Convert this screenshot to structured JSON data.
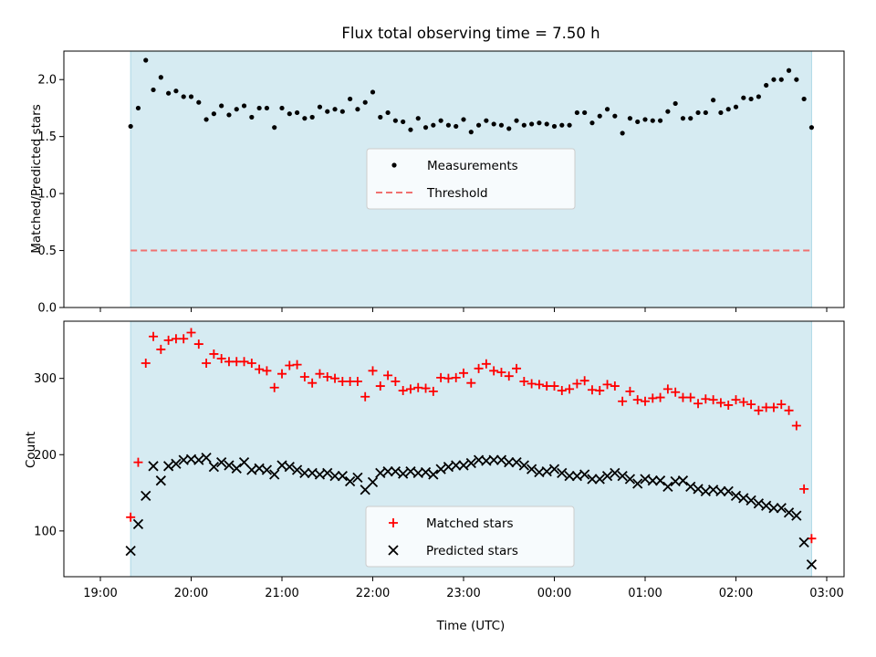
{
  "chart_data": [
    {
      "type": "scatter",
      "title": "Flux total observing time = 7.50 h",
      "xlabel": "",
      "ylabel": "Matched/Predicted stars",
      "ylim": [
        0.0,
        2.25
      ],
      "yticks": [
        "0.0",
        "0.5",
        "1.0",
        "1.5",
        "2.0"
      ],
      "shaded_span": [
        "19:20",
        "02:50"
      ],
      "legend_location": "center",
      "series": [
        {
          "name": "Measurements",
          "marker": "dot",
          "color": "#000000",
          "x": [
            "19:20",
            "19:25",
            "19:30",
            "19:35",
            "19:40",
            "19:45",
            "19:50",
            "19:55",
            "20:00",
            "20:05",
            "20:10",
            "20:15",
            "20:20",
            "20:25",
            "20:30",
            "20:35",
            "20:40",
            "20:45",
            "20:50",
            "20:55",
            "21:00",
            "21:05",
            "21:10",
            "21:15",
            "21:20",
            "21:25",
            "21:30",
            "21:35",
            "21:40",
            "21:45",
            "21:50",
            "21:55",
            "22:00",
            "22:05",
            "22:10",
            "22:15",
            "22:20",
            "22:25",
            "22:30",
            "22:35",
            "22:40",
            "22:45",
            "22:50",
            "22:55",
            "23:00",
            "23:05",
            "23:10",
            "23:15",
            "23:20",
            "23:25",
            "23:30",
            "23:35",
            "23:40",
            "23:45",
            "23:50",
            "23:55",
            "00:00",
            "00:05",
            "00:10",
            "00:15",
            "00:20",
            "00:25",
            "00:30",
            "00:35",
            "00:40",
            "00:45",
            "00:50",
            "00:55",
            "01:00",
            "01:05",
            "01:10",
            "01:15",
            "01:20",
            "01:25",
            "01:30",
            "01:35",
            "01:40",
            "01:45",
            "01:50",
            "01:55",
            "02:00",
            "02:05",
            "02:10",
            "02:15",
            "02:20",
            "02:25",
            "02:30",
            "02:35",
            "02:40",
            "02:45",
            "02:50"
          ],
          "y": [
            1.59,
            1.75,
            2.17,
            1.91,
            2.02,
            1.88,
            1.9,
            1.85,
            1.85,
            1.8,
            1.65,
            1.7,
            1.77,
            1.69,
            1.74,
            1.77,
            1.67,
            1.75,
            1.75,
            1.58,
            1.75,
            1.7,
            1.71,
            1.66,
            1.67,
            1.76,
            1.72,
            1.74,
            1.72,
            1.83,
            1.74,
            1.8,
            1.89,
            1.67,
            1.71,
            1.64,
            1.63,
            1.56,
            1.66,
            1.58,
            1.6,
            1.64,
            1.6,
            1.59,
            1.65,
            1.54,
            1.6,
            1.64,
            1.61,
            1.6,
            1.57,
            1.64,
            1.6,
            1.61,
            1.62,
            1.61,
            1.59,
            1.6,
            1.6,
            1.71,
            1.71,
            1.62,
            1.68,
            1.74,
            1.68,
            1.53,
            1.66,
            1.63,
            1.65,
            1.64,
            1.64,
            1.72,
            1.79,
            1.66,
            1.66,
            1.71,
            1.71,
            1.82,
            1.71,
            1.74,
            1.76,
            1.84,
            1.83,
            1.85,
            1.95,
            2.0,
            2.0,
            2.08,
            2.0,
            1.83,
            1.58
          ]
        },
        {
          "name": "Threshold",
          "marker": "dashed-line",
          "color": "#f07070",
          "x": [
            "19:20",
            "02:50"
          ],
          "y": [
            0.5,
            0.5
          ]
        }
      ]
    },
    {
      "type": "scatter",
      "title": "",
      "xlabel": "Time (UTC)",
      "ylabel": "Count",
      "ylim": [
        40,
        375
      ],
      "yticks": [
        "100",
        "200",
        "300"
      ],
      "xticks": [
        "19:00",
        "20:00",
        "21:00",
        "22:00",
        "23:00",
        "00:00",
        "01:00",
        "02:00",
        "03:00"
      ],
      "shaded_span": [
        "19:20",
        "02:50"
      ],
      "legend_location": "lower center",
      "series": [
        {
          "name": "Matched stars",
          "marker": "plus",
          "color": "#ff0000",
          "x": [
            "19:20",
            "19:25",
            "19:30",
            "19:35",
            "19:40",
            "19:45",
            "19:50",
            "19:55",
            "20:00",
            "20:05",
            "20:10",
            "20:15",
            "20:20",
            "20:25",
            "20:30",
            "20:35",
            "20:40",
            "20:45",
            "20:50",
            "20:55",
            "21:00",
            "21:05",
            "21:10",
            "21:15",
            "21:20",
            "21:25",
            "21:30",
            "21:35",
            "21:40",
            "21:45",
            "21:50",
            "21:55",
            "22:00",
            "22:05",
            "22:10",
            "22:15",
            "22:20",
            "22:25",
            "22:30",
            "22:35",
            "22:40",
            "22:45",
            "22:50",
            "22:55",
            "23:00",
            "23:05",
            "23:10",
            "23:15",
            "23:20",
            "23:25",
            "23:30",
            "23:35",
            "23:40",
            "23:45",
            "23:50",
            "23:55",
            "00:00",
            "00:05",
            "00:10",
            "00:15",
            "00:20",
            "00:25",
            "00:30",
            "00:35",
            "00:40",
            "00:45",
            "00:50",
            "00:55",
            "01:00",
            "01:05",
            "01:10",
            "01:15",
            "01:20",
            "01:25",
            "01:30",
            "01:35",
            "01:40",
            "01:45",
            "01:50",
            "01:55",
            "02:00",
            "02:05",
            "02:10",
            "02:15",
            "02:20",
            "02:25",
            "02:30",
            "02:35",
            "02:40",
            "02:45",
            "02:50"
          ],
          "y": [
            118,
            190,
            320,
            355,
            338,
            350,
            352,
            352,
            360,
            345,
            320,
            332,
            326,
            322,
            322,
            322,
            320,
            312,
            310,
            288,
            306,
            317,
            318,
            302,
            294,
            306,
            302,
            300,
            296,
            296,
            296,
            276,
            310,
            290,
            304,
            296,
            284,
            286,
            288,
            287,
            283,
            301,
            300,
            301,
            307,
            294,
            313,
            319,
            310,
            308,
            303,
            313,
            296,
            293,
            292,
            290,
            290,
            284,
            286,
            293,
            297,
            285,
            284,
            292,
            290,
            270,
            283,
            272,
            270,
            274,
            275,
            286,
            282,
            275,
            275,
            267,
            273,
            272,
            268,
            265,
            272,
            269,
            266,
            258,
            262,
            262,
            266,
            258,
            238,
            155,
            90
          ]
        },
        {
          "name": "Predicted stars",
          "marker": "x",
          "color": "#000000",
          "x": [
            "19:20",
            "19:25",
            "19:30",
            "19:35",
            "19:40",
            "19:45",
            "19:50",
            "19:55",
            "20:00",
            "20:05",
            "20:10",
            "20:15",
            "20:20",
            "20:25",
            "20:30",
            "20:35",
            "20:40",
            "20:45",
            "20:50",
            "20:55",
            "21:00",
            "21:05",
            "21:10",
            "21:15",
            "21:20",
            "21:25",
            "21:30",
            "21:35",
            "21:40",
            "21:45",
            "21:50",
            "21:55",
            "22:00",
            "22:05",
            "22:10",
            "22:15",
            "22:20",
            "22:25",
            "22:30",
            "22:35",
            "22:40",
            "22:45",
            "22:50",
            "22:55",
            "23:00",
            "23:05",
            "23:10",
            "23:15",
            "23:20",
            "23:25",
            "23:30",
            "23:35",
            "23:40",
            "23:45",
            "23:50",
            "23:55",
            "00:00",
            "00:05",
            "00:10",
            "00:15",
            "00:20",
            "00:25",
            "00:30",
            "00:35",
            "00:40",
            "00:45",
            "00:50",
            "00:55",
            "01:00",
            "01:05",
            "01:10",
            "01:15",
            "01:20",
            "01:25",
            "01:30",
            "01:35",
            "01:40",
            "01:45",
            "01:50",
            "01:55",
            "02:00",
            "02:05",
            "02:10",
            "02:15",
            "02:20",
            "02:25",
            "02:30",
            "02:35",
            "02:40",
            "02:45",
            "02:50"
          ],
          "y": [
            74,
            109,
            146,
            185,
            166,
            185,
            188,
            193,
            194,
            193,
            196,
            184,
            190,
            186,
            182,
            190,
            180,
            182,
            180,
            174,
            186,
            184,
            180,
            176,
            176,
            174,
            176,
            172,
            172,
            165,
            170,
            154,
            164,
            176,
            178,
            178,
            175,
            178,
            176,
            177,
            174,
            181,
            184,
            186,
            186,
            189,
            193,
            192,
            193,
            193,
            190,
            190,
            186,
            181,
            177,
            178,
            181,
            176,
            172,
            172,
            174,
            168,
            168,
            172,
            176,
            172,
            168,
            162,
            168,
            166,
            166,
            158,
            165,
            166,
            158,
            155,
            152,
            154,
            152,
            152,
            146,
            143,
            140,
            136,
            133,
            130,
            130,
            124,
            120,
            85,
            56
          ]
        }
      ]
    }
  ]
}
